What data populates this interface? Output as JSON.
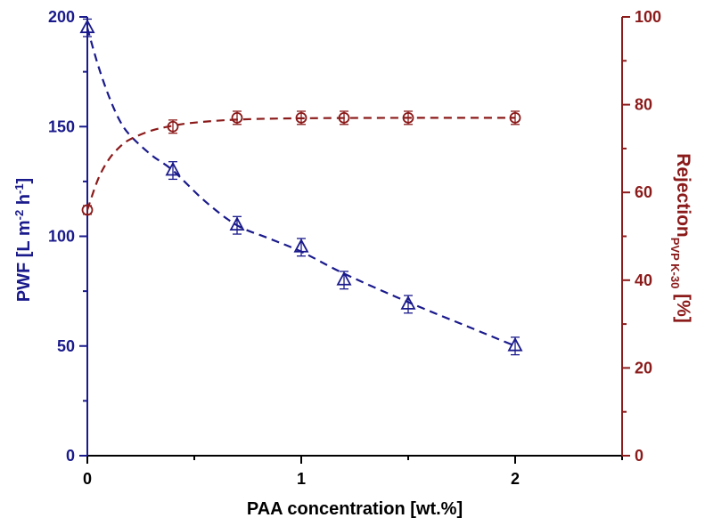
{
  "chart_data": {
    "type": "scatter",
    "x": [
      0,
      0.4,
      0.7,
      1.0,
      1.2,
      1.5,
      2.0
    ],
    "xlabel": "PAA concentration [wt.%]",
    "xlim": [
      0,
      2.5
    ],
    "xticks": [
      0,
      1,
      2
    ],
    "xtick_labels": [
      "0",
      "1",
      "2"
    ],
    "ylabel_left": {
      "main": "PWF [L m",
      "sup1": "-2",
      "mid": " h",
      "sup2": "-1",
      "end": "]"
    },
    "ylim_left": [
      0,
      200
    ],
    "yticks_left": [
      0,
      50,
      100,
      150,
      200
    ],
    "yticks_left_labels": [
      "0",
      "50",
      "100",
      "150",
      "200"
    ],
    "ylabel_right": {
      "main": "Rejection",
      "sub": "PVP K-30",
      "end": " [%]"
    },
    "ylim_right": [
      0,
      100
    ],
    "yticks_right": [
      0,
      20,
      40,
      60,
      80,
      100
    ],
    "yticks_right_labels": [
      "0",
      "20",
      "40",
      "60",
      "80",
      "100"
    ],
    "series": [
      {
        "name": "PWF",
        "axis": "left",
        "marker": "triangle",
        "color": "#1a1a8c",
        "values": [
          195,
          130,
          105,
          95,
          80,
          69,
          50
        ],
        "errors": [
          4,
          4,
          4,
          4,
          4,
          4,
          4
        ]
      },
      {
        "name": "Rejection",
        "axis": "right",
        "marker": "circle",
        "color": "#8b1a1a",
        "values": [
          56,
          75,
          77,
          77,
          77,
          77,
          77
        ],
        "errors": [
          1,
          1.5,
          1.5,
          1.5,
          1.5,
          1.5,
          1.5
        ]
      }
    ],
    "fits": [
      {
        "name": "PWF fit",
        "axis": "left",
        "color": "#1a1a8c",
        "style": "dashed",
        "x": [
          0,
          0.05,
          0.1,
          0.15,
          0.2,
          0.3,
          0.4,
          0.55,
          0.7,
          0.85,
          1.0,
          1.2,
          1.5,
          1.8,
          2.0
        ],
        "y": [
          195,
          178,
          164,
          153,
          146,
          137,
          130,
          116,
          105,
          99,
          93,
          83,
          70,
          58,
          50
        ]
      },
      {
        "name": "Rejection fit",
        "axis": "right",
        "color": "#8b1a1a",
        "style": "dashed",
        "x": [
          0,
          0.05,
          0.1,
          0.15,
          0.2,
          0.3,
          0.4,
          0.5,
          0.7,
          1.0,
          1.5,
          2.0
        ],
        "y": [
          56,
          63,
          67.5,
          70.3,
          72.1,
          74.1,
          75.2,
          75.9,
          76.6,
          76.9,
          77,
          77
        ]
      }
    ],
    "left_axis_color": "#1a1a8c",
    "right_axis_color": "#8b1a1a"
  }
}
